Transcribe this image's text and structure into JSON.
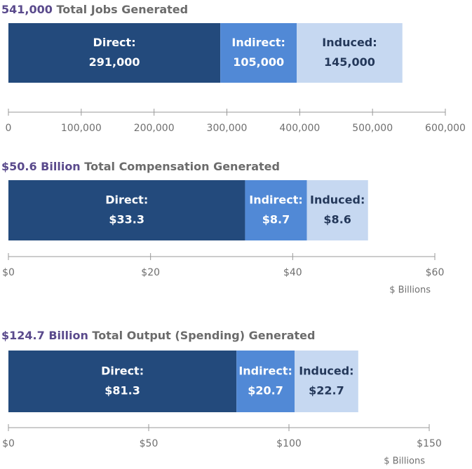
{
  "chart_data": [
    {
      "type": "stacked-bar",
      "title_value": "541,000",
      "title": "Total Jobs Generated",
      "series": [
        {
          "name": "Direct:",
          "color": "#234a7c",
          "values": [
            291000
          ],
          "value_labels": [
            "291,000"
          ]
        },
        {
          "name": "Indirect:",
          "color": "#5189d6",
          "values": [
            105000
          ],
          "value_labels": [
            "105,000"
          ]
        },
        {
          "name": "Induced:",
          "color": "#c6d8f1",
          "values": [
            145000
          ],
          "value_labels": [
            "145,000"
          ]
        }
      ],
      "xlim": [
        0,
        600000
      ],
      "xticks": [
        0,
        {
          "value": 100000,
          "label": "100,000"
        },
        {
          "value": 200000,
          "label": "200,000"
        },
        {
          "value": 300000,
          "label": "300,000"
        },
        {
          "value": 400000,
          "label": "400,000"
        },
        {
          "value": 500000,
          "label": "500,000"
        },
        {
          "value": 600000,
          "label": "600,000"
        }
      ]
    },
    {
      "type": "stacked-bar",
      "title_value": "$50.6 Billion",
      "title": "Total Compensation Generated",
      "series": [
        {
          "name": "Direct:",
          "color": "#234a7c",
          "values": [
            33.3
          ],
          "value_labels": [
            "$33.3"
          ]
        },
        {
          "name": "Indirect:",
          "color": "#5189d6",
          "values": [
            8.7
          ],
          "value_labels": [
            "$8.7"
          ]
        },
        {
          "name": "Induced:",
          "color": "#c6d8f1",
          "values": [
            8.6
          ],
          "value_labels": [
            "$8.6"
          ]
        }
      ],
      "xlim": [
        0,
        60
      ],
      "xticks": [
        {
          "value": 0,
          "label": "$0"
        },
        {
          "value": 20,
          "label": "$20"
        },
        {
          "value": 40,
          "label": "$40"
        },
        {
          "value": 60,
          "label": "$60"
        }
      ],
      "x_label": "$ Billions"
    },
    {
      "type": "stacked-bar",
      "title_value": "$124.7 Billion",
      "title": "Total Output (Spending) Generated",
      "series": [
        {
          "name": "Direct:",
          "color": "#234a7c",
          "values": [
            81.3
          ],
          "value_labels": [
            "$81.3"
          ]
        },
        {
          "name": "Indirect:",
          "color": "#5189d6",
          "values": [
            20.7
          ],
          "value_labels": [
            "$20.7"
          ]
        },
        {
          "name": "Induced:",
          "color": "#c6d8f1",
          "values": [
            22.7
          ],
          "value_labels": [
            "$22.7"
          ]
        }
      ],
      "xlim": [
        0,
        150
      ],
      "xticks": [
        {
          "value": 0,
          "label": "$0"
        },
        {
          "value": 50,
          "label": "$50"
        },
        {
          "value": 100,
          "label": "$100"
        },
        {
          "value": 150,
          "label": "$150"
        }
      ],
      "x_label": "$ Billions"
    }
  ]
}
